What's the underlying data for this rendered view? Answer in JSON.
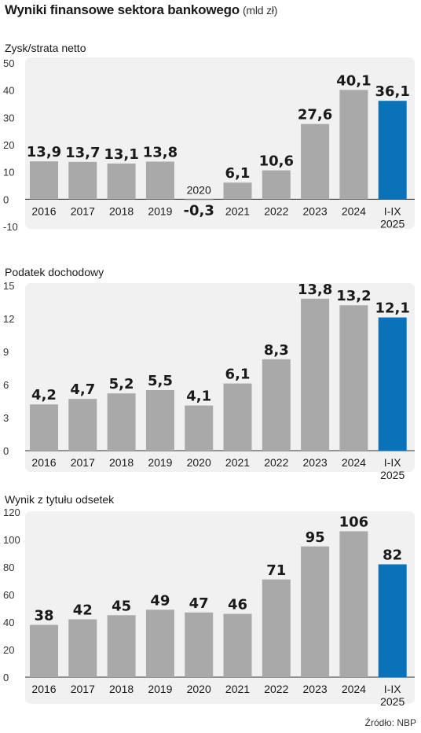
{
  "header": {
    "title": "Wyniki finansowe sektora bankowego",
    "unit": "(mld zł)"
  },
  "source": "Źródło: NBP",
  "colors": {
    "bar": "#a9a9a9",
    "highlight": "#0a72b8",
    "panel": "#f1f1f1"
  },
  "chart_data": [
    {
      "type": "bar",
      "title": "Zysk/strata netto",
      "categories": [
        "2016",
        "2017",
        "2018",
        "2019",
        "2020",
        "2021",
        "2022",
        "2023",
        "2024",
        "I-IX 2025"
      ],
      "values": [
        13.9,
        13.7,
        13.1,
        13.8,
        -0.3,
        6.1,
        10.6,
        27.6,
        40.1,
        36.1
      ],
      "data_labels": [
        "13,9",
        "13,7",
        "13,1",
        "13,8",
        "-0,3",
        "6,1",
        "10,6",
        "27,6",
        "40,1",
        "36,1"
      ],
      "yticks": [
        "50",
        "40",
        "30",
        "20",
        "10",
        "0",
        "-10"
      ],
      "ylim": [
        -10,
        50
      ],
      "highlight_index": 9
    },
    {
      "type": "bar",
      "title": "Podatek dochodowy",
      "categories": [
        "2016",
        "2017",
        "2018",
        "2019",
        "2020",
        "2021",
        "2022",
        "2023",
        "2024",
        "I-IX 2025"
      ],
      "values": [
        4.2,
        4.7,
        5.2,
        5.5,
        4.1,
        6.1,
        8.3,
        13.8,
        13.2,
        12.1
      ],
      "data_labels": [
        "4,2",
        "4,7",
        "5,2",
        "5,5",
        "4,1",
        "6,1",
        "8,3",
        "13,8",
        "13,2",
        "12,1"
      ],
      "yticks": [
        "15",
        "12",
        "9",
        "6",
        "3",
        "0"
      ],
      "ylim": [
        0,
        15
      ],
      "highlight_index": 9
    },
    {
      "type": "bar",
      "title": "Wynik z tytułu odsetek",
      "categories": [
        "2016",
        "2017",
        "2018",
        "2019",
        "2020",
        "2021",
        "2022",
        "2023",
        "2024",
        "I-IX 2025"
      ],
      "values": [
        38,
        42,
        45,
        49,
        47,
        46,
        71,
        95,
        106,
        82
      ],
      "data_labels": [
        "38",
        "42",
        "45",
        "49",
        "47",
        "46",
        "71",
        "95",
        "106",
        "82"
      ],
      "yticks": [
        "120",
        "100",
        "80",
        "60",
        "40",
        "20",
        "0"
      ],
      "ylim": [
        0,
        120
      ],
      "highlight_index": 9
    }
  ]
}
